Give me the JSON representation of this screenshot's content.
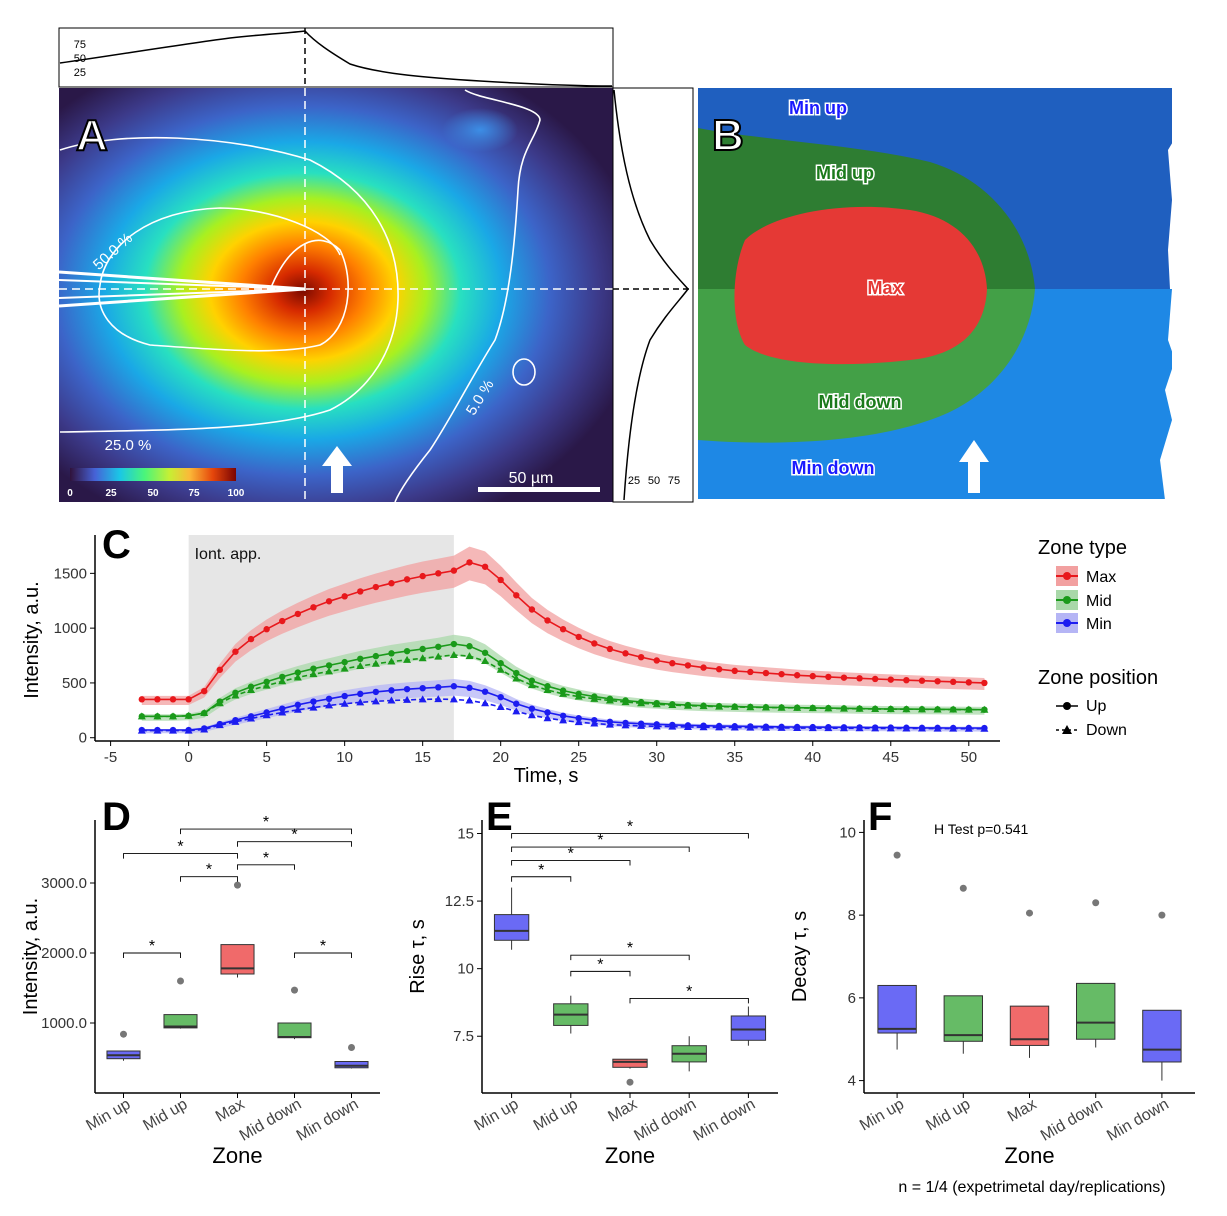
{
  "panels": {
    "A": {
      "letter": "A",
      "contour_labels": [
        "50.0 %",
        "25.0 %",
        "5.0 %"
      ],
      "colorbar_ticks": [
        "0",
        "25",
        "50",
        "75",
        "100"
      ],
      "scalebar_label": "50 µm",
      "top_profile_ticks": [
        "75",
        "50",
        "25"
      ],
      "right_profile_ticks": [
        "25",
        "50",
        "75"
      ],
      "arrow_icon": "up-arrow-icon"
    },
    "B": {
      "letter": "B",
      "zones": [
        "Min up",
        "Mid up",
        "Max",
        "Mid down",
        "Min down"
      ],
      "colors": {
        "min_up": "#1f5fbf",
        "mid_up": "#2e7d32",
        "max": "#e53935",
        "mid_down": "#43a047",
        "min_down": "#1e88e5",
        "min_label": "#1a1aff",
        "mid_label": "#1b7a1b",
        "max_label": "#e53935"
      }
    },
    "C": {
      "letter": "C"
    },
    "D": {
      "letter": "D"
    },
    "E": {
      "letter": "E"
    },
    "F": {
      "letter": "F"
    }
  },
  "caption": "n = 1/4 (expetrimetal day/replications)",
  "chart_data": [
    {
      "panel": "C",
      "type": "line",
      "xlabel": "Time, s",
      "ylabel": "Intensity, a.u.",
      "xlim": [
        -6,
        52
      ],
      "ylim": [
        -30,
        1850
      ],
      "xticks": [
        -5,
        0,
        5,
        10,
        15,
        20,
        25,
        30,
        35,
        40,
        45,
        50
      ],
      "yticks": [
        0,
        500,
        1000,
        1500
      ],
      "shaded_region": {
        "x": [
          0,
          17
        ],
        "label": "Iont. app."
      },
      "legend": {
        "zone_type_title": "Zone type",
        "zone_types": [
          {
            "name": "Max",
            "color": "#e8181c",
            "band": "#f2a0a0"
          },
          {
            "name": "Mid",
            "color": "#1a9a1a",
            "band": "#a9d8a9"
          },
          {
            "name": "Min",
            "color": "#1c1cf0",
            "band": "#b5b5f5"
          }
        ],
        "zone_position_title": "Zone position",
        "zone_positions": [
          "Up",
          "Down"
        ],
        "placement": "right"
      },
      "x": [
        -3,
        -2,
        -1,
        0,
        1,
        2,
        3,
        4,
        5,
        6,
        7,
        8,
        9,
        10,
        11,
        12,
        13,
        14,
        15,
        16,
        17,
        18,
        19,
        20,
        21,
        22,
        23,
        24,
        25,
        26,
        27,
        28,
        29,
        30,
        31,
        32,
        33,
        34,
        35,
        36,
        37,
        38,
        39,
        40,
        41,
        42,
        43,
        44,
        45,
        46,
        47,
        48,
        49,
        50,
        51
      ],
      "series": [
        {
          "name": "Max",
          "position": "Up",
          "values": [
            350,
            350,
            350,
            350,
            425,
            620,
            785,
            900,
            990,
            1065,
            1130,
            1190,
            1245,
            1290,
            1335,
            1375,
            1410,
            1445,
            1475,
            1500,
            1525,
            1600,
            1560,
            1440,
            1300,
            1170,
            1070,
            990,
            920,
            860,
            810,
            770,
            735,
            705,
            680,
            660,
            640,
            625,
            610,
            600,
            590,
            580,
            570,
            562,
            555,
            548,
            542,
            536,
            530,
            525,
            520,
            515,
            510,
            505,
            500
          ]
        },
        {
          "name": "Mid",
          "position": "Up",
          "values": [
            195,
            195,
            195,
            200,
            225,
            330,
            410,
            465,
            510,
            555,
            595,
            630,
            660,
            690,
            720,
            745,
            770,
            790,
            810,
            830,
            855,
            835,
            775,
            680,
            590,
            520,
            470,
            430,
            400,
            375,
            355,
            340,
            325,
            315,
            305,
            298,
            292,
            288,
            284,
            281,
            278,
            276,
            274,
            272,
            270,
            268,
            266,
            264,
            262,
            261,
            260,
            259,
            258,
            257,
            256
          ]
        },
        {
          "name": "Mid",
          "position": "Down",
          "values": [
            195,
            195,
            195,
            200,
            225,
            315,
            385,
            435,
            475,
            515,
            550,
            580,
            605,
            630,
            655,
            675,
            695,
            710,
            725,
            740,
            755,
            745,
            700,
            620,
            540,
            480,
            435,
            400,
            375,
            355,
            340,
            325,
            315,
            305,
            298,
            292,
            288,
            284,
            281,
            278,
            276,
            274,
            272,
            270,
            268,
            266,
            264,
            262,
            261,
            260,
            259,
            258,
            257,
            256,
            255
          ]
        },
        {
          "name": "Min",
          "position": "Up",
          "values": [
            70,
            70,
            70,
            70,
            85,
            125,
            160,
            195,
            230,
            265,
            300,
            330,
            355,
            380,
            400,
            418,
            432,
            443,
            452,
            460,
            470,
            455,
            420,
            370,
            310,
            265,
            230,
            200,
            178,
            160,
            145,
            135,
            128,
            122,
            117,
            113,
            110,
            107,
            105,
            103,
            101,
            99,
            98,
            97,
            96,
            95,
            94,
            93,
            92,
            91,
            90,
            90,
            89,
            89,
            88
          ]
        },
        {
          "name": "Min",
          "position": "Down",
          "values": [
            65,
            65,
            65,
            65,
            75,
            115,
            145,
            175,
            205,
            230,
            255,
            275,
            295,
            310,
            322,
            332,
            340,
            345,
            350,
            352,
            350,
            340,
            315,
            280,
            240,
            205,
            178,
            158,
            142,
            130,
            120,
            113,
            108,
            104,
            101,
            98,
            96,
            94,
            93,
            92,
            91,
            90,
            89,
            88,
            87,
            86,
            86,
            85,
            85,
            84,
            84,
            83,
            83,
            82,
            82
          ]
        }
      ]
    },
    {
      "panel": "D",
      "type": "box",
      "xlabel": "Zone",
      "ylabel": "Intensity, a.u.",
      "ylim": [
        0,
        3900
      ],
      "yticks": [
        1000,
        2000,
        3000
      ],
      "categories": [
        "Min up",
        "Mid up",
        "Max",
        "Mid down",
        "Min down"
      ],
      "colors": [
        "#6a6af5",
        "#66bb66",
        "#f06a6a",
        "#66bb66",
        "#6a6af5"
      ],
      "boxes": [
        {
          "min": 460,
          "q1": 490,
          "median": 540,
          "q3": 600,
          "max": 600,
          "outliers": [
            840
          ]
        },
        {
          "min": 920,
          "q1": 930,
          "median": 950,
          "q3": 1120,
          "max": 1120,
          "outliers": [
            1600
          ]
        },
        {
          "min": 1650,
          "q1": 1700,
          "median": 1780,
          "q3": 2120,
          "max": 2120,
          "outliers": [
            2970
          ]
        },
        {
          "min": 770,
          "q1": 790,
          "median": 800,
          "q3": 1000,
          "max": 1000,
          "outliers": [
            1470
          ]
        },
        {
          "min": 350,
          "q1": 360,
          "median": 390,
          "q3": 450,
          "max": 450,
          "outliers": [
            650
          ]
        }
      ],
      "significance": [
        {
          "from": "Min up",
          "to": "Mid up",
          "y": 2000,
          "label": "*"
        },
        {
          "from": "Mid down",
          "to": "Min down",
          "y": 2000,
          "label": "*"
        },
        {
          "from": "Mid up",
          "to": "Max",
          "y": 3090,
          "label": "*"
        },
        {
          "from": "Max",
          "to": "Mid down",
          "y": 3260,
          "label": "*"
        },
        {
          "from": "Min up",
          "to": "Max",
          "y": 3420,
          "label": "*"
        },
        {
          "from": "Max",
          "to": "Min down",
          "y": 3590,
          "label": "*"
        },
        {
          "from": "Mid up",
          "to": "Min down",
          "y": 3770,
          "label": "*"
        }
      ]
    },
    {
      "panel": "E",
      "type": "box",
      "xlabel": "Zone",
      "ylabel": "Rise τ, s",
      "ylim": [
        5.4,
        15.5
      ],
      "yticks": [
        7.5,
        10.0,
        12.5,
        15.0
      ],
      "categories": [
        "Min up",
        "Mid up",
        "Max",
        "Mid down",
        "Min down"
      ],
      "colors": [
        "#6a6af5",
        "#66bb66",
        "#f06a6a",
        "#66bb66",
        "#6a6af5"
      ],
      "boxes": [
        {
          "min": 10.7,
          "q1": 11.05,
          "median": 11.4,
          "q3": 12.0,
          "max": 13.0,
          "outliers": []
        },
        {
          "min": 7.6,
          "q1": 7.9,
          "median": 8.3,
          "q3": 8.7,
          "max": 9.0,
          "outliers": []
        },
        {
          "min": 6.3,
          "q1": 6.35,
          "median": 6.55,
          "q3": 6.65,
          "max": 6.65,
          "outliers": [
            5.8
          ]
        },
        {
          "min": 6.2,
          "q1": 6.55,
          "median": 6.85,
          "q3": 7.15,
          "max": 7.5,
          "outliers": []
        },
        {
          "min": 7.15,
          "q1": 7.35,
          "median": 7.75,
          "q3": 8.25,
          "max": 8.6,
          "outliers": []
        }
      ],
      "significance": [
        {
          "from": "Mid up",
          "to": "Max",
          "y": 9.9,
          "label": "*"
        },
        {
          "from": "Max",
          "to": "Min down",
          "y": 8.9,
          "label": "*"
        },
        {
          "from": "Mid up",
          "to": "Mid down",
          "y": 10.5,
          "label": "*"
        },
        {
          "from": "Min up",
          "to": "Mid up",
          "y": 13.4,
          "label": "*"
        },
        {
          "from": "Min up",
          "to": "Max",
          "y": 14.0,
          "label": "*"
        },
        {
          "from": "Min up",
          "to": "Mid down",
          "y": 14.5,
          "label": "*"
        },
        {
          "from": "Min up",
          "to": "Min down",
          "y": 15.0,
          "label": "*"
        }
      ]
    },
    {
      "panel": "F",
      "type": "box",
      "xlabel": "Zone",
      "ylabel": "Decay τ, s",
      "ylim": [
        3.7,
        10.3
      ],
      "yticks": [
        4,
        6,
        8,
        10
      ],
      "annotation": "H Test p=0.541",
      "categories": [
        "Min up",
        "Mid up",
        "Max",
        "Mid down",
        "Min down"
      ],
      "colors": [
        "#6a6af5",
        "#66bb66",
        "#f06a6a",
        "#66bb66",
        "#6a6af5"
      ],
      "boxes": [
        {
          "min": 4.75,
          "q1": 5.15,
          "median": 5.25,
          "q3": 6.3,
          "max": 6.3,
          "outliers": [
            9.45
          ]
        },
        {
          "min": 4.65,
          "q1": 4.95,
          "median": 5.1,
          "q3": 6.05,
          "max": 6.05,
          "outliers": [
            8.65
          ]
        },
        {
          "min": 4.55,
          "q1": 4.85,
          "median": 5.0,
          "q3": 5.8,
          "max": 5.8,
          "outliers": [
            8.05
          ]
        },
        {
          "min": 4.8,
          "q1": 5.0,
          "median": 5.4,
          "q3": 6.35,
          "max": 6.35,
          "outliers": [
            8.3
          ]
        },
        {
          "min": 4.0,
          "q1": 4.45,
          "median": 4.75,
          "q3": 5.7,
          "max": 5.7,
          "outliers": [
            8.0
          ]
        }
      ],
      "significance": []
    }
  ]
}
